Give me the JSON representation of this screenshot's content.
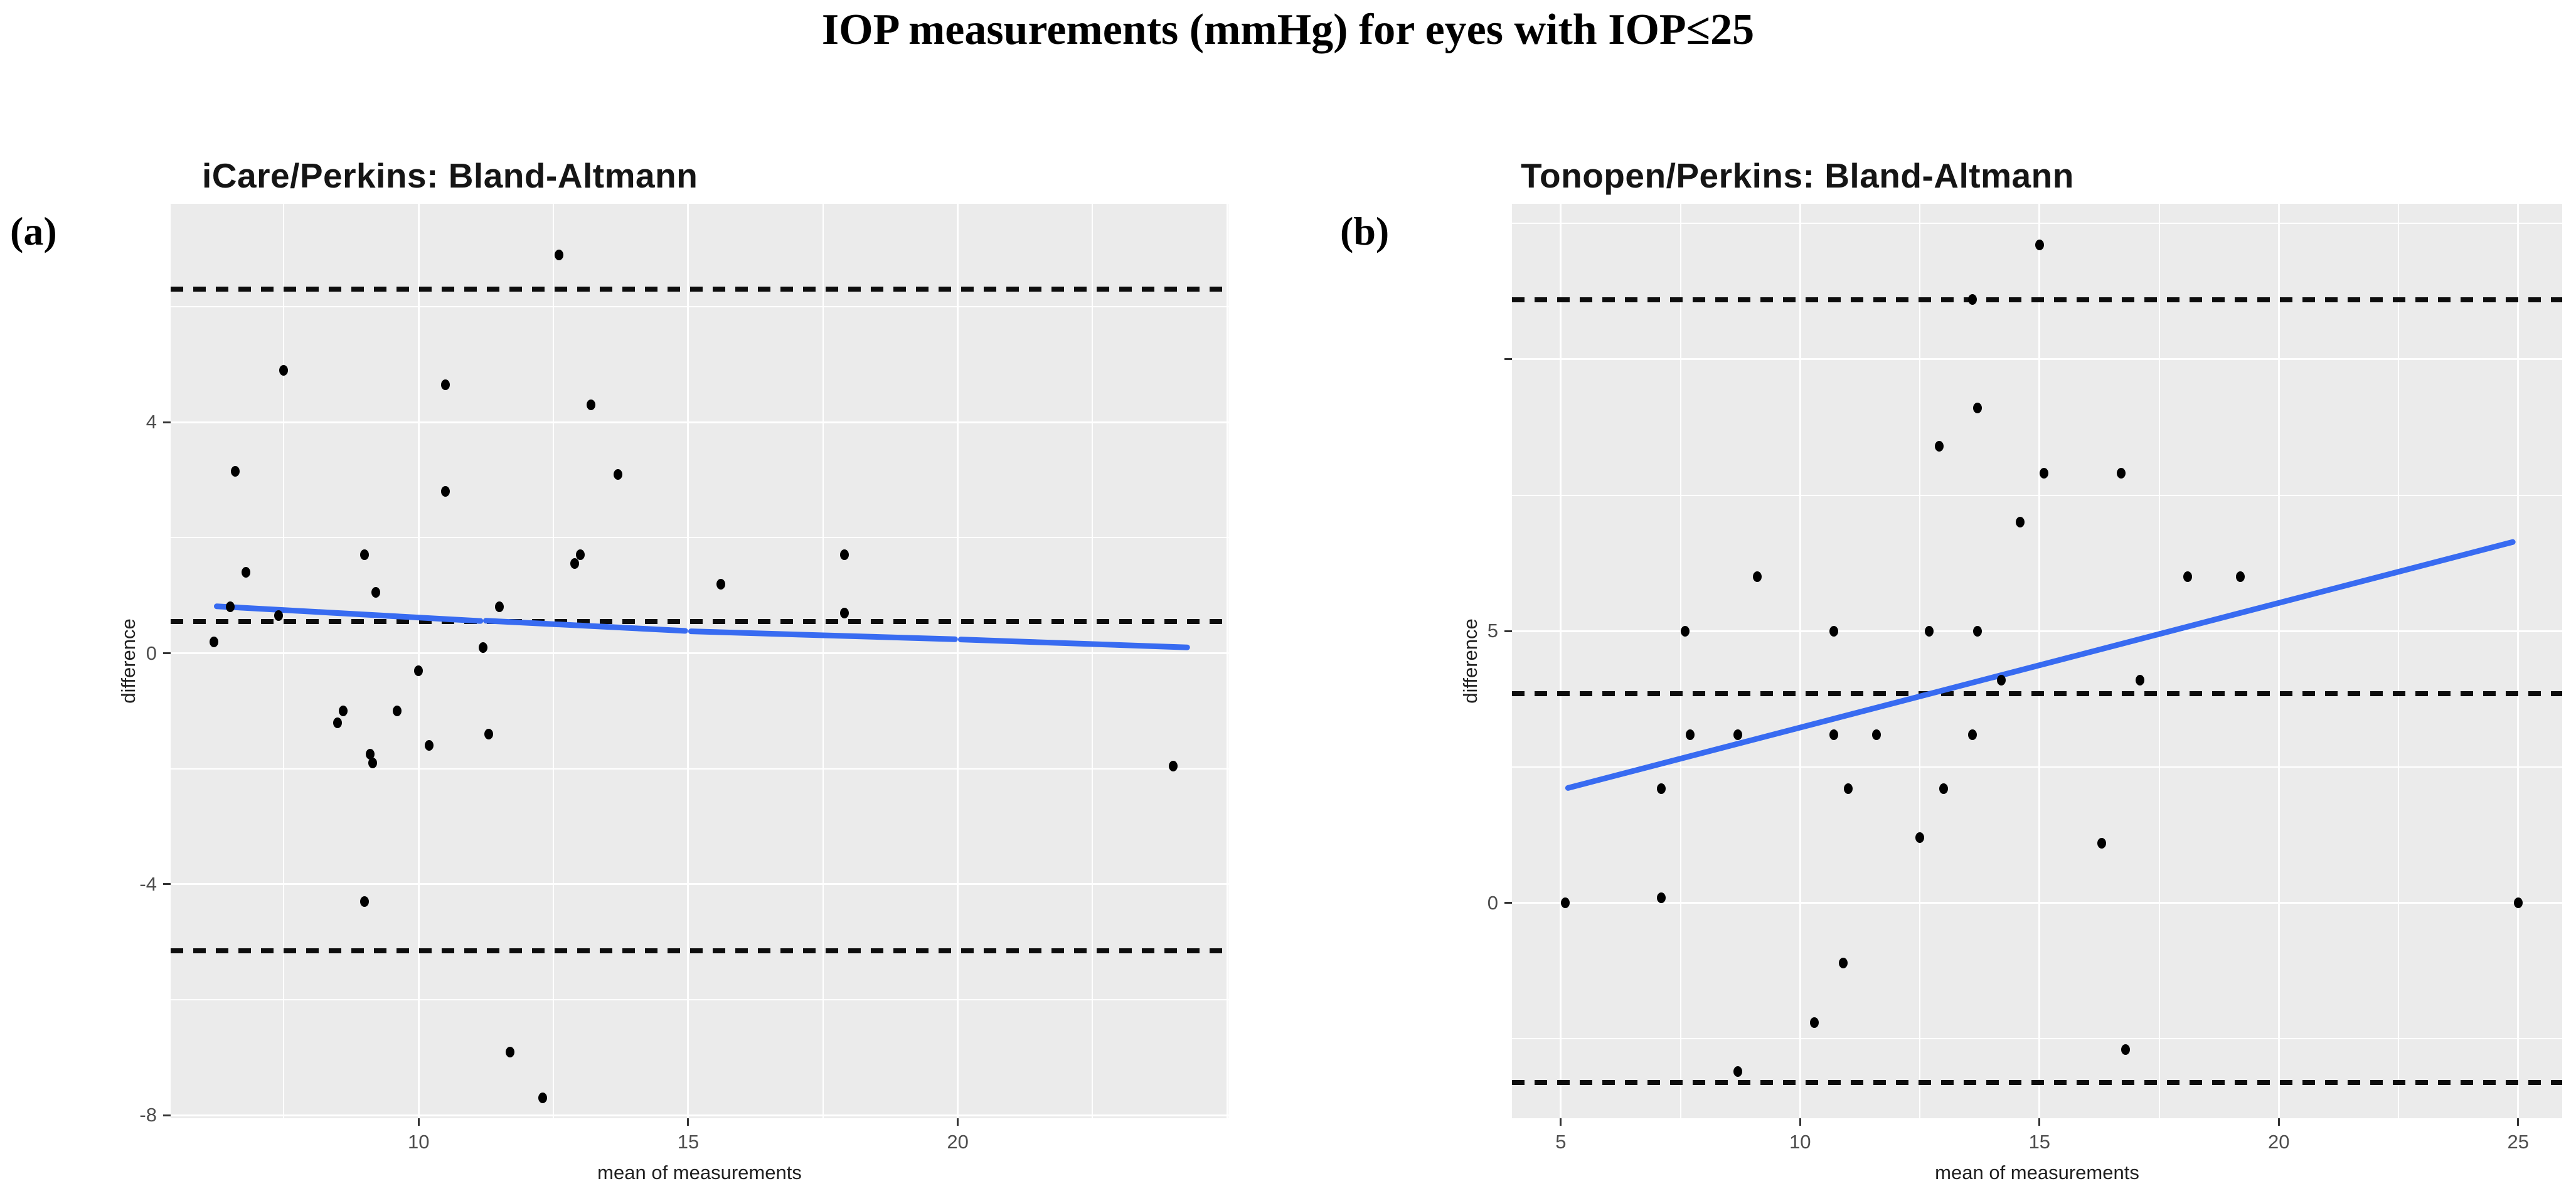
{
  "figure_title": "IOP measurements (mmHg) for eyes with IOP≤25",
  "panel_labels": {
    "a": "(a)",
    "b": "(b)"
  },
  "colors": {
    "panel_bg": "#EBEBEB",
    "gridline": "#ffffff",
    "point": "#000000",
    "dashed_line": "#0d0d0d",
    "trend_line": "#386BF1",
    "tick_label": "#4d4d4d"
  },
  "chart_data": [
    {
      "type": "scatter",
      "title": "iCare/Perkins: Bland-Altmann",
      "xlabel": "mean of measurements",
      "ylabel": "difference",
      "xlim": [
        5.4,
        25.02
      ],
      "ylim": [
        -8.05,
        7.78
      ],
      "grid": {
        "x_major": [
          10,
          15,
          20
        ],
        "x_minor": [
          7.5,
          12.5,
          17.5,
          22.5,
          25
        ],
        "y_major": [
          4,
          0,
          -4,
          -8
        ],
        "y_minor": [
          6,
          2,
          -2,
          -6
        ]
      },
      "x_ticks": [
        {
          "v": 10,
          "label": "10"
        },
        {
          "v": 15,
          "label": "15"
        },
        {
          "v": 20,
          "label": "20"
        }
      ],
      "y_ticks": [
        {
          "v": 4,
          "label": "4"
        },
        {
          "v": 0,
          "label": "0"
        },
        {
          "v": -4,
          "label": "-4"
        },
        {
          "v": -8,
          "label": "-8"
        }
      ],
      "mean_line": 0.55,
      "loa_lines": [
        6.3,
        -5.15
      ],
      "trend_path": [
        [
          6.2,
          0.82
        ],
        [
          11.2,
          0.56
        ],
        [
          15.0,
          0.38
        ],
        [
          20.0,
          0.24
        ],
        [
          24.3,
          0.1
        ]
      ],
      "points": [
        [
          12.6,
          6.9
        ],
        [
          7.5,
          4.9
        ],
        [
          10.5,
          4.65
        ],
        [
          13.2,
          4.3
        ],
        [
          6.6,
          3.15
        ],
        [
          13.7,
          3.1
        ],
        [
          10.5,
          2.8
        ],
        [
          9.0,
          1.7
        ],
        [
          17.9,
          1.7
        ],
        [
          13.0,
          1.7
        ],
        [
          12.9,
          1.55
        ],
        [
          6.8,
          1.4
        ],
        [
          15.6,
          1.2
        ],
        [
          9.2,
          1.05
        ],
        [
          11.5,
          0.8
        ],
        [
          6.5,
          0.8
        ],
        [
          7.4,
          0.65
        ],
        [
          17.9,
          0.7
        ],
        [
          6.2,
          0.2
        ],
        [
          11.2,
          0.1
        ],
        [
          10.0,
          -0.3
        ],
        [
          8.6,
          -1.0
        ],
        [
          9.6,
          -1.0
        ],
        [
          8.5,
          -1.2
        ],
        [
          11.3,
          -1.4
        ],
        [
          10.2,
          -1.6
        ],
        [
          9.1,
          -1.75
        ],
        [
          9.15,
          -1.9
        ],
        [
          24.0,
          -1.95
        ],
        [
          9.0,
          -4.3
        ],
        [
          11.7,
          -6.9
        ],
        [
          12.3,
          -7.7
        ]
      ]
    },
    {
      "type": "scatter",
      "title": "Tonopen/Perkins: Bland-Altmann",
      "xlabel": "mean of measurements",
      "ylabel": "difference",
      "xlim": [
        3.98,
        25.92
      ],
      "ylim": [
        -3.96,
        12.86
      ],
      "grid": {
        "x_major": [
          5,
          10,
          15,
          20,
          25
        ],
        "x_minor": [
          7.5,
          12.5,
          17.5,
          22.5
        ],
        "y_major": [
          10,
          5,
          0
        ],
        "y_minor": [
          12.5,
          7.5,
          2.5,
          -2.5
        ]
      },
      "x_ticks": [
        {
          "v": 5,
          "label": "5"
        },
        {
          "v": 10,
          "label": "10"
        },
        {
          "v": 15,
          "label": "15"
        },
        {
          "v": 20,
          "label": "20"
        },
        {
          "v": 25,
          "label": "25"
        }
      ],
      "y_ticks": [
        {
          "v": 10,
          "label": ""
        },
        {
          "v": 5,
          "label": "5"
        },
        {
          "v": 0,
          "label": "0"
        }
      ],
      "mean_line": 3.85,
      "loa_lines": [
        11.1,
        -3.3
      ],
      "trend_path": [
        [
          5.1,
          2.1
        ],
        [
          24.95,
          6.65
        ]
      ],
      "points": [
        [
          15.0,
          12.1
        ],
        [
          13.6,
          11.1
        ],
        [
          13.7,
          9.1
        ],
        [
          12.9,
          8.4
        ],
        [
          15.1,
          7.9
        ],
        [
          16.7,
          7.9
        ],
        [
          14.6,
          7.0
        ],
        [
          9.1,
          6.0
        ],
        [
          18.1,
          6.0
        ],
        [
          19.2,
          6.0
        ],
        [
          7.6,
          5.0
        ],
        [
          10.7,
          5.0
        ],
        [
          12.7,
          5.0
        ],
        [
          13.7,
          5.0
        ],
        [
          14.2,
          4.1
        ],
        [
          17.1,
          4.1
        ],
        [
          7.7,
          3.1
        ],
        [
          8.7,
          3.1
        ],
        [
          10.7,
          3.1
        ],
        [
          11.6,
          3.1
        ],
        [
          13.6,
          3.1
        ],
        [
          7.1,
          2.1
        ],
        [
          11.0,
          2.1
        ],
        [
          13.0,
          2.1
        ],
        [
          12.5,
          1.2
        ],
        [
          16.3,
          1.1
        ],
        [
          5.1,
          0.0
        ],
        [
          7.1,
          0.1
        ],
        [
          25.0,
          0.0
        ],
        [
          10.9,
          -1.1
        ],
        [
          10.3,
          -2.2
        ],
        [
          16.8,
          -2.7
        ],
        [
          8.7,
          -3.1
        ]
      ]
    }
  ]
}
